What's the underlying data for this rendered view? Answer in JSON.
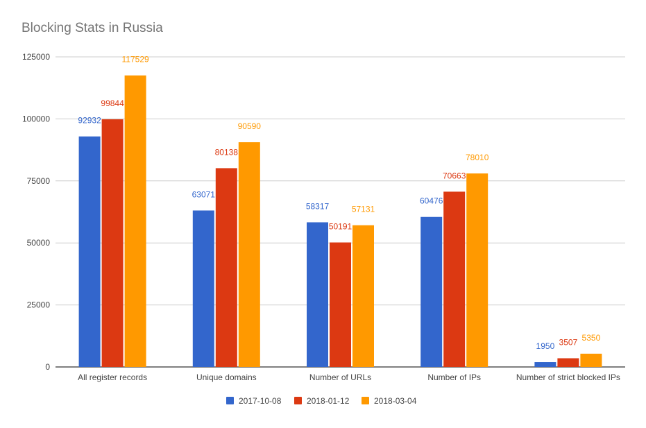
{
  "chart_data": {
    "type": "bar",
    "title": "Blocking Stats in Russia",
    "categories": [
      "All register records",
      "Unique domains",
      "Number of URLs",
      "Number of IPs",
      "Number of strict blocked IPs"
    ],
    "series": [
      {
        "name": "2017-10-08",
        "color": "#3366cc",
        "values": [
          92932,
          63071,
          58317,
          60476,
          1950
        ]
      },
      {
        "name": "2018-01-12",
        "color": "#dc3912",
        "values": [
          99844,
          80138,
          50191,
          70663,
          3507
        ]
      },
      {
        "name": "2018-03-04",
        "color": "#ff9900",
        "values": [
          117529,
          90590,
          57131,
          78010,
          5350
        ]
      }
    ],
    "y_ticks": [
      0,
      25000,
      50000,
      75000,
      100000,
      125000
    ],
    "ylim": [
      0,
      125000
    ],
    "grid": true,
    "legend_position": "bottom"
  }
}
